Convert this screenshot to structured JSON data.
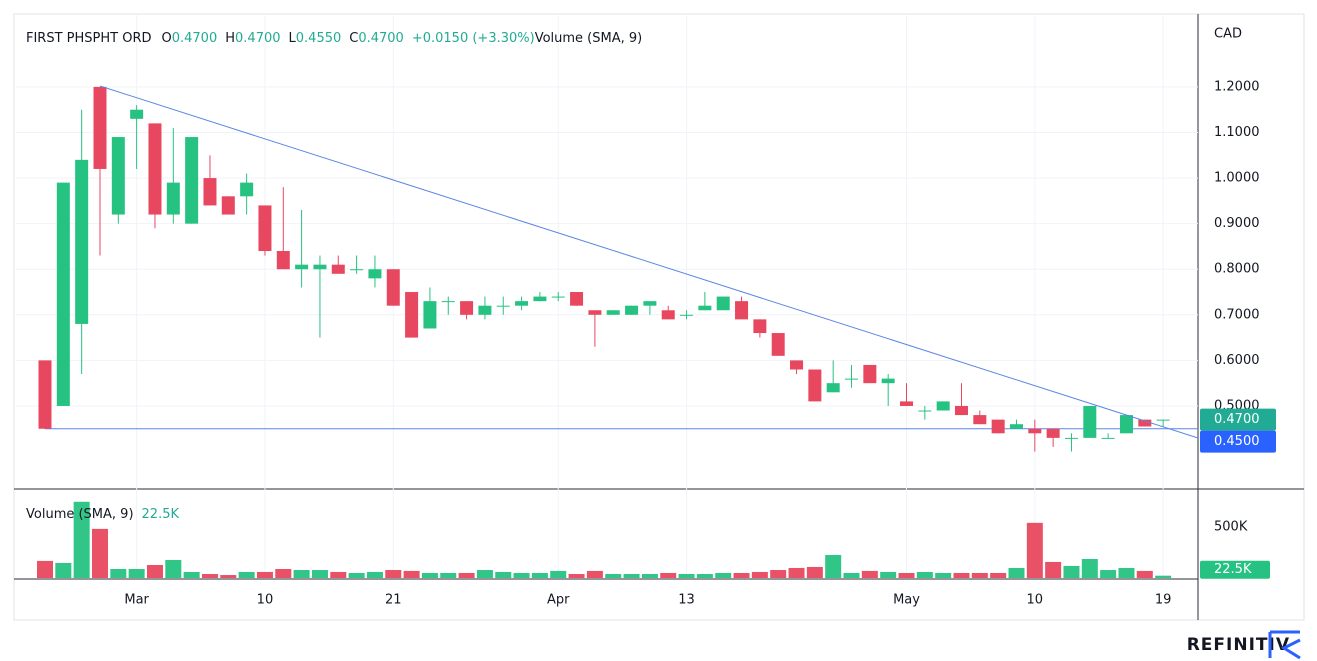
{
  "chart_data": {
    "type": "candlestick",
    "legend": {
      "name": "FIRST PHSPHT ORD",
      "fields": [
        {
          "key": "O",
          "value": "0.4700"
        },
        {
          "key": "H",
          "value": "0.4700"
        },
        {
          "key": "L",
          "value": "0.4550"
        },
        {
          "key": "C",
          "value": "0.4700"
        }
      ],
      "change": "+0.0150 (+3.30%)"
    },
    "currency": "CAD",
    "up_color": "#26c281",
    "down_color": "#e8485f",
    "categories": [
      null,
      null,
      null,
      null,
      null,
      "Mar",
      null,
      null,
      null,
      null,
      null,
      null,
      "10",
      null,
      null,
      null,
      null,
      null,
      null,
      "21",
      null,
      null,
      null,
      null,
      null,
      null,
      null,
      null,
      "Apr",
      null,
      null,
      null,
      null,
      null,
      null,
      "13",
      null,
      null,
      null,
      null,
      null,
      null,
      null,
      null,
      null,
      null,
      null,
      "May",
      null,
      null,
      null,
      null,
      null,
      null,
      "10",
      null,
      null,
      null,
      null,
      null,
      null,
      "19"
    ],
    "open": [
      0.6,
      0.5,
      0.68,
      1.2,
      0.92,
      1.13,
      1.12,
      0.92,
      0.9,
      1.0,
      0.96,
      0.96,
      0.94,
      0.84,
      0.8,
      0.8,
      0.81,
      0.8,
      0.78,
      0.8,
      0.75,
      0.67,
      0.73,
      0.73,
      0.7,
      0.72,
      0.72,
      0.73,
      0.74,
      0.75,
      0.71,
      0.7,
      0.7,
      0.72,
      0.71,
      0.7,
      0.71,
      0.71,
      0.73,
      0.69,
      0.66,
      0.6,
      0.58,
      0.53,
      0.56,
      0.59,
      0.55,
      0.51,
      0.49,
      0.49,
      0.5,
      0.48,
      0.47,
      0.45,
      0.45,
      0.45,
      0.43,
      0.43,
      0.43,
      0.44,
      0.47,
      0.47
    ],
    "high": [
      0.6,
      0.99,
      1.15,
      1.2,
      1.09,
      1.16,
      1.12,
      1.11,
      1.09,
      1.05,
      0.96,
      1.01,
      0.94,
      0.98,
      0.93,
      0.83,
      0.83,
      0.83,
      0.83,
      0.8,
      0.75,
      0.76,
      0.74,
      0.73,
      0.74,
      0.74,
      0.74,
      0.75,
      0.75,
      0.75,
      0.71,
      0.71,
      0.72,
      0.73,
      0.72,
      0.71,
      0.75,
      0.74,
      0.74,
      0.69,
      0.66,
      0.6,
      0.58,
      0.6,
      0.59,
      0.59,
      0.57,
      0.55,
      0.5,
      0.51,
      0.55,
      0.49,
      0.47,
      0.47,
      0.47,
      0.45,
      0.44,
      0.5,
      0.44,
      0.48,
      0.47,
      0.47
    ],
    "low": [
      0.45,
      0.5,
      0.57,
      0.83,
      0.9,
      1.02,
      0.89,
      0.9,
      0.9,
      0.94,
      0.92,
      0.92,
      0.83,
      0.8,
      0.76,
      0.65,
      0.79,
      0.79,
      0.76,
      0.72,
      0.65,
      0.67,
      0.7,
      0.69,
      0.69,
      0.7,
      0.71,
      0.73,
      0.73,
      0.72,
      0.63,
      0.7,
      0.7,
      0.7,
      0.69,
      0.69,
      0.71,
      0.71,
      0.69,
      0.65,
      0.61,
      0.57,
      0.51,
      0.53,
      0.54,
      0.55,
      0.5,
      0.5,
      0.47,
      0.49,
      0.48,
      0.46,
      0.44,
      0.45,
      0.4,
      0.41,
      0.4,
      0.43,
      0.43,
      0.44,
      0.455,
      0.455
    ],
    "close": [
      0.45,
      0.99,
      1.04,
      1.02,
      1.09,
      1.15,
      0.92,
      0.99,
      1.09,
      0.94,
      0.92,
      0.99,
      0.84,
      0.8,
      0.81,
      0.81,
      0.79,
      0.8,
      0.8,
      0.72,
      0.65,
      0.73,
      0.73,
      0.7,
      0.72,
      0.72,
      0.73,
      0.74,
      0.74,
      0.72,
      0.7,
      0.71,
      0.72,
      0.73,
      0.69,
      0.7,
      0.72,
      0.74,
      0.69,
      0.66,
      0.61,
      0.58,
      0.51,
      0.55,
      0.56,
      0.55,
      0.56,
      0.5,
      0.49,
      0.51,
      0.48,
      0.46,
      0.44,
      0.46,
      0.44,
      0.43,
      0.43,
      0.5,
      0.43,
      0.48,
      0.455,
      0.47
    ],
    "ylim": [
      0.32,
      1.36
    ],
    "yticks": [
      {
        "value": 0.5,
        "label": "0.5000"
      },
      {
        "value": 0.6,
        "label": "0.6000"
      },
      {
        "value": 0.7,
        "label": "0.7000"
      },
      {
        "value": 0.8,
        "label": "0.8000"
      },
      {
        "value": 0.9,
        "label": "0.9000"
      },
      {
        "value": 1.0,
        "label": "1.0000"
      },
      {
        "value": 1.1,
        "label": "1.1000"
      },
      {
        "value": 1.2,
        "label": "1.2000"
      }
    ],
    "price_labels": [
      {
        "value": 0.47,
        "label": "0.4700",
        "color": "#22ab94"
      },
      {
        "value": 0.45,
        "label": "0.4500",
        "color": "#2962ff"
      }
    ],
    "support_line": 0.45,
    "line_color": "#5b86e5",
    "volume": {
      "title": "Volume (SMA, 9)",
      "last_label": {
        "value": 22500,
        "label": "22.5K"
      },
      "values": [
        167000,
        147000,
        745000,
        480000,
        88000,
        88000,
        127000,
        176000,
        59000,
        39000,
        29000,
        59000,
        59000,
        88000,
        78000,
        78000,
        59000,
        49000,
        59000,
        78000,
        69000,
        49000,
        49000,
        49000,
        78000,
        59000,
        49000,
        49000,
        69000,
        39000,
        69000,
        39000,
        39000,
        39000,
        49000,
        39000,
        39000,
        49000,
        49000,
        59000,
        78000,
        98000,
        108000,
        225000,
        49000,
        69000,
        59000,
        49000,
        59000,
        49000,
        49000,
        49000,
        49000,
        98000,
        539000,
        157000,
        118000,
        186000,
        78000,
        98000,
        69000,
        22500
      ],
      "ylim": [
        0,
        860000
      ],
      "yticks": [
        {
          "value": 500000,
          "label": "500K"
        }
      ]
    },
    "brand": "REFINITIV"
  }
}
